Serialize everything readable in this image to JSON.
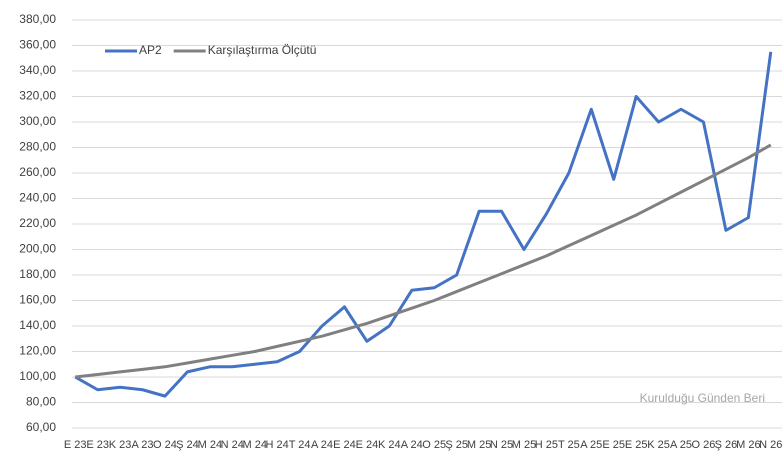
{
  "chart_data": {
    "type": "line",
    "categories": [
      "E 23",
      "E 23",
      "K 23",
      "A 23",
      "O 24",
      "Ş 24",
      "M 24",
      "N 24",
      "M 24",
      "H 24",
      "T 24",
      "A 24",
      "E 24",
      "E 24",
      "K 24",
      "A 24",
      "O 25",
      "Ş 25",
      "M 25",
      "N 25",
      "M 25",
      "H 25",
      "T 25",
      "A 25",
      "E 25",
      "E 25",
      "K 25",
      "A 25",
      "O 26",
      "Ş 26",
      "M 26",
      "N 26"
    ],
    "series": [
      {
        "name": "AP2",
        "color": "#4472c4",
        "values": [
          100,
          90,
          92,
          90,
          85,
          104,
          108,
          108,
          110,
          112,
          120,
          140,
          155,
          128,
          140,
          168,
          170,
          180,
          230,
          230,
          200,
          228,
          260,
          310,
          255,
          320,
          300,
          310,
          300,
          215,
          225,
          355
        ]
      },
      {
        "name": "Karşılaştırma Ölçütü",
        "color": "#808080",
        "values": [
          100,
          102,
          104,
          106,
          108,
          111,
          114,
          117,
          120,
          124,
          128,
          132,
          137,
          142,
          148,
          154,
          160,
          167,
          174,
          181,
          188,
          195,
          203,
          211,
          219,
          227,
          236,
          245,
          254,
          263,
          272,
          282
        ]
      }
    ],
    "ylim": [
      60,
      380
    ],
    "yticks": [
      {
        "value": 60,
        "label": "60,00"
      },
      {
        "value": 80,
        "label": "80,00"
      },
      {
        "value": 100,
        "label": "100,00"
      },
      {
        "value": 120,
        "label": "120,00"
      },
      {
        "value": 140,
        "label": "140,00"
      },
      {
        "value": 160,
        "label": "160,00"
      },
      {
        "value": 180,
        "label": "180,00"
      },
      {
        "value": 200,
        "label": "200,00"
      },
      {
        "value": 220,
        "label": "220,00"
      },
      {
        "value": 240,
        "label": "240,00"
      },
      {
        "value": 260,
        "label": "260,00"
      },
      {
        "value": 280,
        "label": "280,00"
      },
      {
        "value": 300,
        "label": "300,00"
      },
      {
        "value": 320,
        "label": "320,00"
      },
      {
        "value": 340,
        "label": "340,00"
      },
      {
        "value": 360,
        "label": "360,00"
      },
      {
        "value": 380,
        "label": "380,00"
      }
    ],
    "grid": true,
    "legend": "top-left",
    "annotation": "Kurulduğu Günden Beri"
  }
}
